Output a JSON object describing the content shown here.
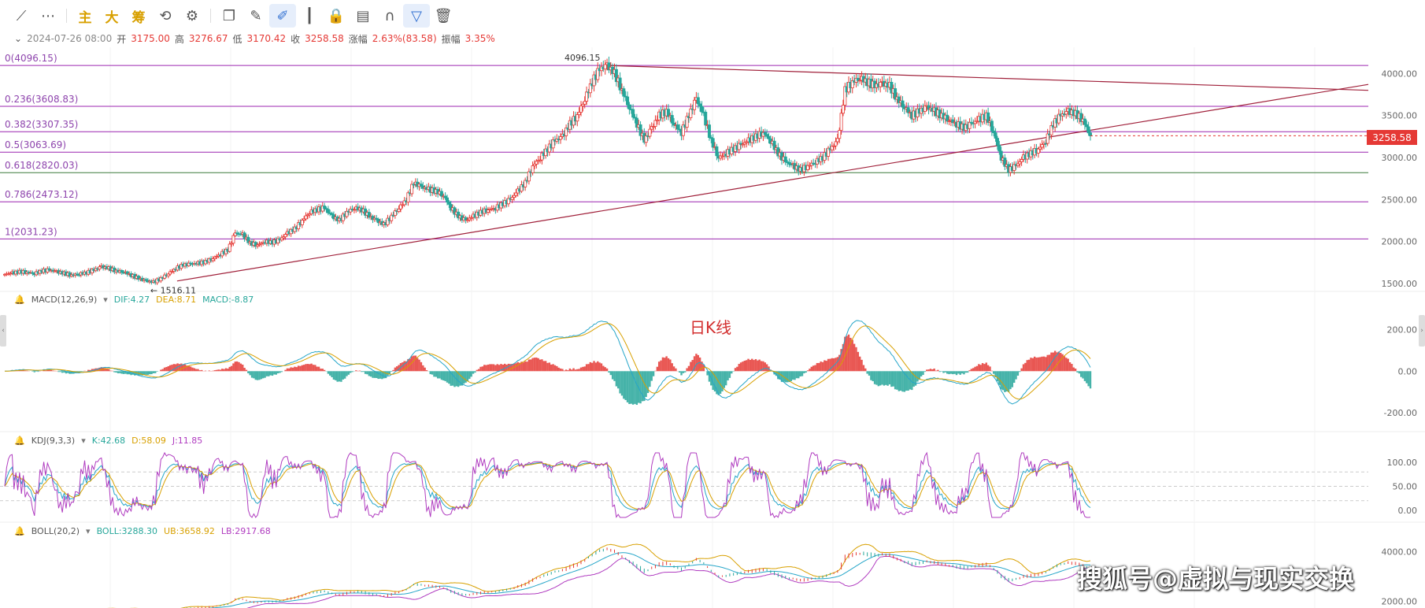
{
  "toolbar": {
    "items": [
      {
        "name": "line-draw-icon",
        "glyph": "⟋"
      },
      {
        "name": "more-icon",
        "glyph": "⋯"
      },
      {
        "name": "sep"
      },
      {
        "name": "main-chart-toggle",
        "glyph": "主",
        "cn": true
      },
      {
        "name": "major-player-toggle",
        "glyph": "大",
        "cn": true
      },
      {
        "name": "chip-toggle",
        "glyph": "筹",
        "cn": true
      },
      {
        "name": "sync-icon",
        "glyph": "⟲"
      },
      {
        "name": "settings-draw-icon",
        "glyph": "⚙"
      },
      {
        "name": "sep"
      },
      {
        "name": "copy-icon",
        "glyph": "❐"
      },
      {
        "name": "ruler-icon",
        "glyph": "✎"
      },
      {
        "name": "draw-brush-icon",
        "glyph": "✐",
        "active": true
      },
      {
        "name": "candles-icon",
        "glyph": "┃"
      },
      {
        "name": "lock-icon",
        "glyph": "🔒"
      },
      {
        "name": "note-icon",
        "glyph": "▤"
      },
      {
        "name": "magnet-icon",
        "glyph": "∩"
      },
      {
        "name": "filter-icon",
        "glyph": "▽",
        "active": true
      },
      {
        "name": "trash-icon",
        "glyph": "🗑"
      }
    ]
  },
  "quote": {
    "date": "2024-07-26 08:00",
    "open_label": "开",
    "open": "3175.00",
    "high_label": "高",
    "high": "3276.67",
    "low_label": "低",
    "low": "3170.42",
    "close_label": "收",
    "close": "3258.58",
    "change_label": "涨幅",
    "change": "2.63%(83.58)",
    "amp_label": "振幅",
    "amp": "3.35%"
  },
  "current_price": "3258.58",
  "caption": "日K线",
  "watermark": "搜狐号@虚拟与现实交换",
  "colors": {
    "up": "#e53935",
    "down": "#26a69a",
    "fib": "#9c27b0",
    "trend": "#a0203a"
  },
  "macd_legend": {
    "name": "MACD(12,26,9)",
    "dif": "DIF:4.27",
    "dea": "DEA:8.71",
    "macd": "MACD:-8.87"
  },
  "kdj_legend": {
    "name": "KDJ(9,3,3)",
    "k": "K:42.68",
    "d": "D:58.09",
    "j": "J:11.85"
  },
  "boll_legend": {
    "name": "BOLL(20,2)",
    "mid": "BOLL:3288.30",
    "ub": "UB:3658.92",
    "lb": "LB:2917.68"
  },
  "chart_data": [
    {
      "type": "candlestick",
      "title": "日K线",
      "ylim": [
        1500,
        4200
      ],
      "yticks": [
        "4000.00",
        "3500.00",
        "3000.00",
        "2500.00",
        "2000.00",
        "1500.00"
      ],
      "ytick_values": [
        4000,
        3500,
        3000,
        2500,
        2000,
        1500
      ],
      "fib_levels": [
        {
          "label": "0(4096.15)",
          "value": 4096.15
        },
        {
          "label": "0.236(3608.83)",
          "value": 3608.83
        },
        {
          "label": "0.382(3307.35)",
          "value": 3307.35
        },
        {
          "label": "0.5(3063.69)",
          "value": 3063.69
        },
        {
          "label": "0.618(2820.03)",
          "value": 2820.03
        },
        {
          "label": "0.786(2473.12)",
          "value": 2473.12
        },
        {
          "label": "1(2031.23)",
          "value": 2031.23
        }
      ],
      "annotations": [
        {
          "text": "4096.15",
          "value": 4096.15
        },
        {
          "text": "← 1516.11",
          "value": 1516.11
        }
      ],
      "series": [
        {
          "values": [
            1610,
            1625,
            1640,
            1635,
            1620,
            1650,
            1660,
            1640,
            1620,
            1600,
            1615,
            1630,
            1660,
            1700,
            1680,
            1650,
            1640,
            1600,
            1560,
            1530,
            1516,
            1560,
            1620,
            1680,
            1720,
            1730,
            1740,
            1760,
            1800,
            1850,
            1900,
            2100,
            2080,
            1980,
            1960,
            2000,
            1990,
            2020,
            2100,
            2150,
            2250,
            2350,
            2380,
            2400,
            2300,
            2250,
            2350,
            2400,
            2380,
            2300,
            2250,
            2200,
            2300,
            2400,
            2500,
            2700,
            2650,
            2620,
            2600,
            2550,
            2400,
            2300,
            2250,
            2300,
            2350,
            2380,
            2400,
            2450,
            2500,
            2600,
            2700,
            2900,
            3000,
            3100,
            3200,
            3250,
            3400,
            3500,
            3700,
            3900,
            4050,
            4096,
            4000,
            3800,
            3600,
            3400,
            3200,
            3350,
            3500,
            3550,
            3400,
            3300,
            3500,
            3700,
            3500,
            3200,
            3000,
            3050,
            3100,
            3150,
            3200,
            3250,
            3300,
            3200,
            3050,
            2950,
            2900,
            2850,
            2900,
            2950,
            3000,
            3100,
            3200,
            3800,
            3900,
            3950,
            3900,
            3850,
            3880,
            3850,
            3700,
            3600,
            3500,
            3550,
            3600,
            3550,
            3500,
            3450,
            3400,
            3350,
            3400,
            3450,
            3500,
            3300,
            3000,
            2850,
            2900,
            3000,
            3050,
            3100,
            3200,
            3400,
            3500,
            3550,
            3520,
            3450,
            3258
          ]
        }
      ]
    },
    {
      "type": "bar+line",
      "title": "MACD(12,26,9)",
      "yticks": [
        "200.00",
        "0.00",
        "-200.00"
      ],
      "ytick_values": [
        200,
        0,
        -200
      ],
      "ylim": [
        -260,
        300
      ]
    },
    {
      "type": "line",
      "title": "KDJ(9,3,3)",
      "yticks": [
        "100.00",
        "50.00",
        "0.00"
      ],
      "ytick_values": [
        100,
        50,
        0
      ],
      "ylim": [
        -20,
        125
      ]
    },
    {
      "type": "line",
      "title": "BOLL(20,2)",
      "yticks": [
        "4000.00",
        "2000.00"
      ],
      "ytick_values": [
        4000,
        2000
      ],
      "ylim": [
        1800,
        4400
      ]
    }
  ]
}
